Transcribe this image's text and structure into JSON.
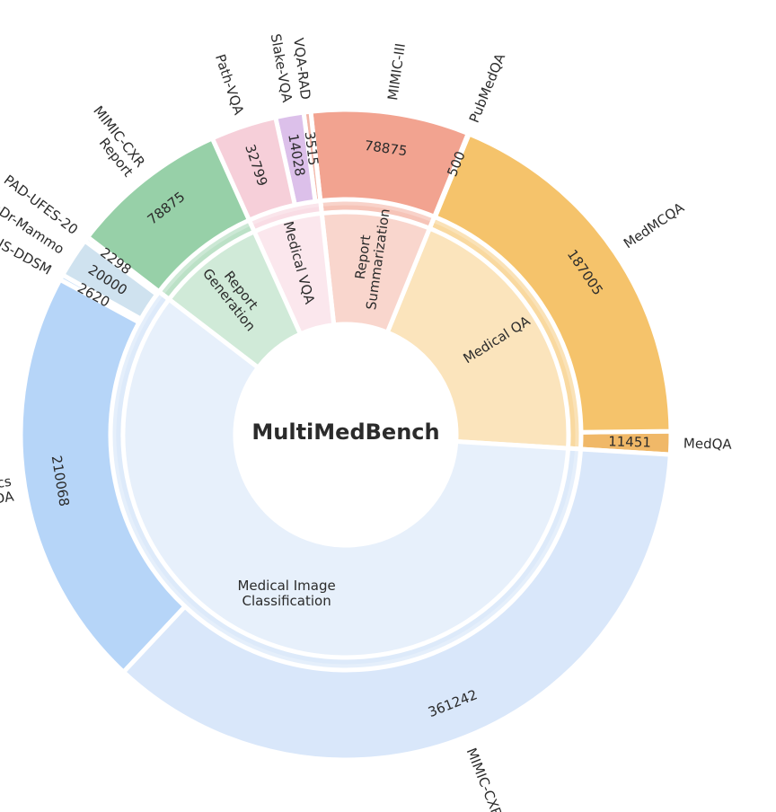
{
  "chart_data": {
    "type": "sunburst",
    "title": "MultiMedBench",
    "categories": [
      {
        "name": "Medical QA",
        "color": "#f5c36b",
        "children": [
          {
            "name": "MedQA",
            "value": 11451,
            "label_value": "11451",
            "color": "#f0b868"
          },
          {
            "name": "MedMCQA",
            "value": 187005,
            "label_value": "187005",
            "color": "#f5c36b"
          },
          {
            "name": "PubMedQA",
            "value": 500,
            "label_value": "500",
            "color": "#f5c36b"
          }
        ]
      },
      {
        "name": "Report\nSummarization",
        "color": "#f2a390",
        "children": [
          {
            "name": "MIMIC-III",
            "value": 78875,
            "label_value": "78875",
            "color": "#f2a390"
          }
        ]
      },
      {
        "name": "Medical VQA",
        "color": "#f6c9d6",
        "children": [
          {
            "name": "VQA-RAD",
            "value": 3515,
            "label_value": "3515",
            "color": "#f2b6a8"
          },
          {
            "name": "Slake-VQA",
            "value": 14028,
            "label_value": "14028",
            "color": "#dcc0ea"
          },
          {
            "name": "Path-VQA",
            "value": 32799,
            "label_value": "32799",
            "color": "#f6cfd9"
          }
        ]
      },
      {
        "name": "Report\nGeneration",
        "color": "#97d0a8",
        "children": [
          {
            "name": "MIMIC-CXR\nReport",
            "value": 78875,
            "label_value": "78875",
            "color": "#97d0a8"
          }
        ]
      },
      {
        "name": "Medical Image\nClassification",
        "color": "#c9ddf7",
        "children": [
          {
            "name": "PAD-UFES-20",
            "value": 2298,
            "label_value": "2298",
            "color": "#cfe2ef"
          },
          {
            "name": "VinDr-Mammo",
            "value": 20000,
            "label_value": "20000",
            "color": "#cfe2ef"
          },
          {
            "name": "CBIS-DDSM",
            "value": 2620,
            "label_value": "2620",
            "color": "#c6def7"
          },
          {
            "name": "Genomics\nPrecisionFDA",
            "value": 210068,
            "label_value": "210068",
            "color": "#b6d5f8"
          },
          {
            "name": "MIMIC-CXR",
            "value": 361242,
            "label_value": "361242",
            "color": "#d9e7fa"
          }
        ]
      }
    ]
  }
}
